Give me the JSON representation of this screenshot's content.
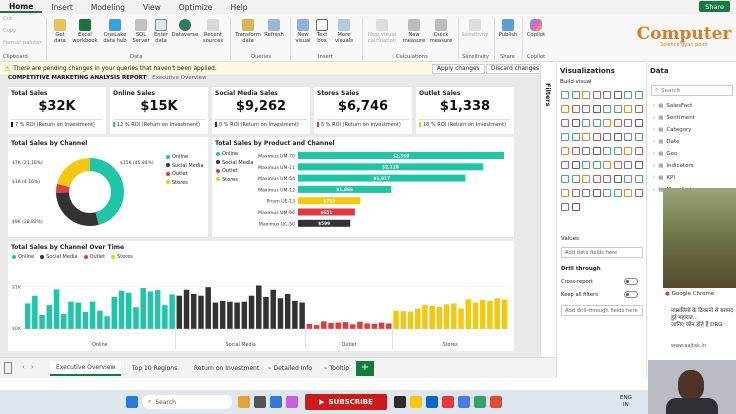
{
  "menu": {
    "items": [
      "Home",
      "Insert",
      "Modeling",
      "View",
      "Optimize",
      "Help"
    ],
    "share": "Share"
  },
  "ribbon": {
    "clipboard": {
      "cut": "Cut",
      "copy": "Copy",
      "format": "Format painter",
      "group": "Clipboard"
    },
    "data_buttons": [
      "Get data",
      "Excel workbook",
      "OneLake data hub",
      "SQL Server",
      "Enter data",
      "Dataverse",
      "Recent sources"
    ],
    "data_group": "Data",
    "queries_buttons": [
      "Transform data",
      "Refresh"
    ],
    "queries_group": "Queries",
    "insert_buttons": [
      "New visual",
      "Text box",
      "More visuals"
    ],
    "insert_group": "Insert",
    "calc_buttons": [
      "New visual calculation",
      "New measure",
      "Quick measure"
    ],
    "calc_group": "Calculations",
    "sens_button": "Sensitivity",
    "sens_group": "Sensitivity",
    "publish_button": "Publish",
    "share_group": "Share",
    "copilot_button": "Copilot",
    "copilot_group": "Copilot"
  },
  "watermark": {
    "title": "Computer",
    "subtitle": "Science gyan point"
  },
  "pending": {
    "message": "There are pending changes in your queries that haven't been applied.",
    "apply": "Apply changes",
    "discard": "Discard changes"
  },
  "report": {
    "header_title": "COMPETITIVE MARKETING ANALYSIS REPORT",
    "header_sub": "Executive Overview",
    "cards": [
      {
        "title": "Total Sales",
        "value": "$32K",
        "roi": "7 % ROI (Return on Investment)",
        "color": "#111111"
      },
      {
        "title": "Online Sales",
        "value": "$15K",
        "roi": "12 % ROI (Return on Investment)",
        "color": "#20c5a8"
      },
      {
        "title": "Social Media Sales",
        "value": "$9,262",
        "roi": "0 % ROI (Return on Investment)",
        "color": "#333333"
      },
      {
        "title": "Stores Sales",
        "value": "$6,746",
        "roi": "5 % ROI (Return on Investment)",
        "color": "#e0393e"
      },
      {
        "title": "Outlet Sales",
        "value": "$1,338",
        "roi": "18 % ROI (Return on Investment)",
        "color": "#f2c811"
      }
    ]
  },
  "donut": {
    "title": "Total Sales by Channel",
    "labels": {
      "online": "$15K (45.84%)",
      "social": "$9K (28.82%)",
      "outlet": "$1K (4.16%)",
      "stores": "$7K (21.18%)"
    },
    "legend": [
      "Online",
      "Social Media",
      "Outlet",
      "Stores"
    ]
  },
  "chart_data": [
    {
      "type": "pie",
      "title": "Total Sales by Channel",
      "categories": [
        "Online",
        "Social Media",
        "Outlet",
        "Stores"
      ],
      "values": [
        45.84,
        28.82,
        4.16,
        21.18
      ],
      "colors": [
        "#20c5a8",
        "#333333",
        "#e0393e",
        "#f2c811"
      ]
    },
    {
      "type": "bar",
      "title": "Total Sales by Product and Channel",
      "categories": [
        "Maximus UM-70",
        "Maximus UM-11",
        "Maximus UM-54",
        "Maximus UM-12",
        "Pirum UE-13",
        "Maximus UM-66",
        "Maximus UC-50"
      ],
      "values": [
        2359,
        2118,
        1917,
        1066,
        715,
        651,
        599
      ],
      "labels": [
        "$2,359",
        "$2,118",
        "$1,917",
        "$1,066",
        "$715",
        "$651",
        "$599"
      ],
      "series_colors": [
        "#20c5a8",
        "#20c5a8",
        "#20c5a8",
        "#20c5a8",
        "#f2c811",
        "#e0393e",
        "#333333"
      ],
      "legend": [
        "Online",
        "Social Media",
        "Outlet",
        "Stores"
      ]
    },
    {
      "type": "bar",
      "title": "Total Sales by Channel Over Time",
      "legend": [
        "Online",
        "Social Media",
        "Outlet",
        "Stores"
      ],
      "ylim": [
        0,
        1500
      ],
      "yticks": [
        "$1K",
        "$0K"
      ],
      "groups": [
        {
          "name": "Online",
          "color": "#20c5a8",
          "values": [
            600,
            780,
            330,
            560,
            930,
            350,
            640,
            620,
            400,
            640,
            430,
            300,
            750,
            900,
            850,
            510,
            960,
            880,
            910,
            560,
            810
          ]
        },
        {
          "name": "Social Media",
          "color": "#333333",
          "values": [
            780,
            920,
            820,
            780,
            980,
            620,
            660,
            640,
            620,
            640,
            780,
            1020,
            750,
            920,
            720,
            820,
            660,
            620
          ]
        },
        {
          "name": "Outlet",
          "color": "#e0393e",
          "values": [
            120,
            90,
            180,
            140,
            150,
            160,
            110,
            170,
            130,
            120,
            150,
            130
          ]
        },
        {
          "name": "Stores",
          "color": "#f2c811",
          "values": [
            430,
            420,
            410,
            480,
            560,
            540,
            520,
            580,
            600,
            480,
            700,
            620,
            680,
            660,
            720,
            690
          ]
        }
      ],
      "group_labels": [
        "Online",
        "Social Media",
        "Outlet",
        "Stores"
      ]
    }
  ],
  "bars": {
    "title": "Total Sales by Product and Channel"
  },
  "timeline": {
    "title": "Total Sales by Channel Over Time"
  },
  "tabs": [
    "Executive Overview",
    "Top 10 Regions",
    "Return on Investment",
    "Detailed Info",
    "Tooltip"
  ],
  "filters_label": "Filters",
  "viz": {
    "title": "Visualizations",
    "build": "Build visual",
    "values": "Values",
    "add_fields": "Add data fields here",
    "drill": "Drill through",
    "cross": "Cross-report",
    "keep": "Keep all filters",
    "add_drill": "Add drill-through fields here",
    "cross_state": "Off",
    "keep_state": "On"
  },
  "data_pane": {
    "title": "Data",
    "search": "Search",
    "items": [
      "SalesFact",
      "Sentiment",
      "Category",
      "Date",
      "Geo",
      "Indicators",
      "KPI",
      "Manufacturer"
    ]
  },
  "overlay": {
    "chrome": "Google Chrome",
    "hindi1": "नक्सलियों के ठिकानों से बरामद हुई महारात...",
    "hindi2": "जानिए कौन होते हैं DRG",
    "url": "www.aajtak.in"
  },
  "taskbar": {
    "search": "Search",
    "subscribe": "SUBSCRIBE",
    "lang1": "ENG",
    "lang2": "IN"
  }
}
